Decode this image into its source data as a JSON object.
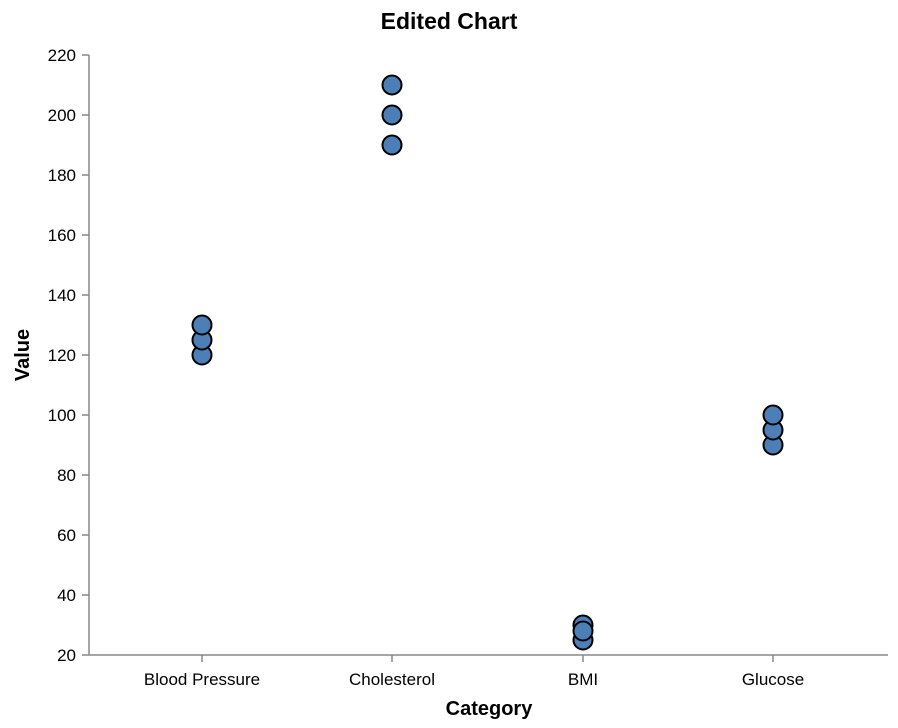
{
  "chart_data": {
    "type": "scatter",
    "title": "Edited Chart",
    "xlabel": "Category",
    "ylabel": "Value",
    "categories": [
      "Blood Pressure",
      "Cholesterol",
      "BMI",
      "Glucose"
    ],
    "ylim": [
      20,
      220
    ],
    "yticks": [
      20,
      40,
      60,
      80,
      100,
      120,
      140,
      160,
      180,
      200,
      220
    ],
    "grid": false,
    "points": [
      {
        "category": "Blood Pressure",
        "value": 120
      },
      {
        "category": "Blood Pressure",
        "value": 125
      },
      {
        "category": "Blood Pressure",
        "value": 130
      },
      {
        "category": "Cholesterol",
        "value": 190
      },
      {
        "category": "Cholesterol",
        "value": 200
      },
      {
        "category": "Cholesterol",
        "value": 210
      },
      {
        "category": "BMI",
        "value": 25
      },
      {
        "category": "BMI",
        "value": 30
      },
      {
        "category": "BMI",
        "value": 28
      },
      {
        "category": "Glucose",
        "value": 90
      },
      {
        "category": "Glucose",
        "value": 95
      },
      {
        "category": "Glucose",
        "value": 100
      }
    ],
    "colors": {
      "point_fill": "#4c7fb8",
      "point_stroke": "#000000",
      "axis": "#888888"
    }
  }
}
